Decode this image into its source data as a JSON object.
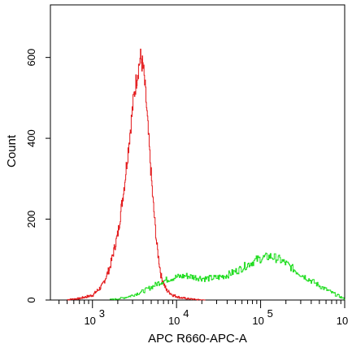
{
  "chart_data": {
    "type": "histogram",
    "title": "",
    "xlabel": "APC R660-APC-A",
    "ylabel": "Count",
    "x_scale": "log",
    "xlim": [
      316,
      1000000
    ],
    "ylim": [
      0,
      730
    ],
    "grid": false,
    "legend": "none",
    "x_ticks": [
      {
        "value": 1000,
        "base": "10",
        "exp": "3"
      },
      {
        "value": 10000,
        "base": "10",
        "exp": "4"
      },
      {
        "value": 100000,
        "base": "10",
        "exp": "5"
      },
      {
        "value": 1000000,
        "base": "10",
        "exp": ""
      }
    ],
    "y_ticks": [
      {
        "value": 0,
        "label": "0"
      },
      {
        "value": 200,
        "label": "200"
      },
      {
        "value": 400,
        "label": "400"
      },
      {
        "value": 600,
        "label": "600"
      }
    ],
    "series": [
      {
        "color": "#e31a1c",
        "x": [
          500,
          700,
          1000,
          1300,
          1600,
          2000,
          2400,
          2800,
          3100,
          3400,
          3700,
          4000,
          4300,
          4700,
          5200,
          5800,
          6500,
          7500,
          9000,
          11000,
          14000,
          18000,
          22000
        ],
        "y": [
          1,
          4,
          12,
          35,
          80,
          165,
          290,
          420,
          505,
          560,
          600,
          575,
          500,
          380,
          250,
          135,
          60,
          25,
          12,
          6,
          3,
          1,
          0
        ]
      },
      {
        "color": "#22dd22",
        "x": [
          1600,
          2000,
          2500,
          3000,
          4000,
          5000,
          6000,
          8000,
          10000,
          13000,
          17000,
          22000,
          30000,
          40000,
          55000,
          70000,
          90000,
          110000,
          130000,
          160000,
          200000,
          260000,
          350000,
          500000,
          700000,
          900000,
          1000000
        ],
        "y": [
          1,
          3,
          7,
          12,
          22,
          32,
          42,
          52,
          57,
          60,
          56,
          53,
          55,
          62,
          75,
          88,
          100,
          105,
          108,
          102,
          90,
          72,
          55,
          35,
          18,
          7,
          2
        ]
      }
    ]
  }
}
